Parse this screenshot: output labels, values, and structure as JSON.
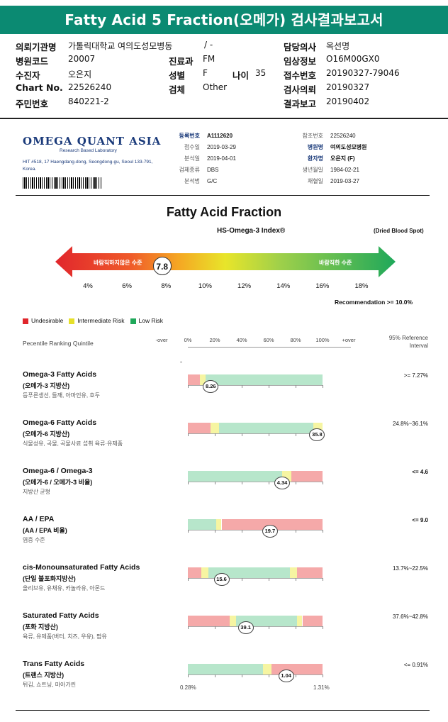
{
  "header": {
    "title": "Fatty Acid 5 Fraction(오메가) 검사결과보고서"
  },
  "patient_info": [
    {
      "label": "의뢰기관명",
      "value": "가톨릭대학교 여의도성모병동"
    },
    {
      "label": "병원코드",
      "value": "20007"
    },
    {
      "label": "수진자",
      "value": "오은지"
    },
    {
      "label": "Chart No.",
      "value": "22526240"
    },
    {
      "label": "주민번호",
      "value": "840221-2"
    },
    {
      "label": "",
      "value": "/ -"
    },
    {
      "label": "진료과",
      "value": "FM"
    },
    {
      "label": "성별",
      "value": "F"
    },
    {
      "label": "검체",
      "value": "Other"
    },
    {
      "label": "나이",
      "value": "35"
    },
    {
      "label": "담당의사",
      "value": "옥선명"
    },
    {
      "label": "임상정보",
      "value": "O16M00GX0"
    },
    {
      "label": "접수번호",
      "value": "20190327-79046"
    },
    {
      "label": "검사의뢰",
      "value": "20190327"
    },
    {
      "label": "결과보고",
      "value": "20190402"
    }
  ],
  "lab": {
    "name": "OMEGA QUANT ASIA",
    "subtitle": "Research Based Laboratory",
    "address": "HIT #518, 17 Haengdang-dong, Seongdong-gu, Seoul 133-791, Korea."
  },
  "report_meta_left": [
    {
      "label": "등록번호",
      "value": "A1112620",
      "bold": true
    },
    {
      "label": "접수일",
      "value": "2019-03-29"
    },
    {
      "label": "분석일",
      "value": "2019-04-01"
    },
    {
      "label": "검체종류",
      "value": "DBS"
    },
    {
      "label": "분석법",
      "value": "G/C"
    }
  ],
  "report_meta_right": [
    {
      "label": "참조번호",
      "value": "22526240"
    },
    {
      "label": "병원명",
      "value": "여의도성모병원",
      "bold": true
    },
    {
      "label": "환자명",
      "value": "오은지 (F)",
      "bold": true
    },
    {
      "label": "생년월일",
      "value": "1984-02-21"
    },
    {
      "label": "채혈일",
      "value": "2019-03-27"
    }
  ],
  "index_chart": {
    "title": "Fatty Acid Fraction",
    "index_title": "HS-Omega-3 Index®",
    "sample_note": "(Dried Blood Spot)",
    "left_label": "바람직하지않은 수준",
    "right_label": "바람직한 수준",
    "score": "7.8",
    "score_value": 7.8,
    "scale": [
      "4%",
      "6%",
      "8%",
      "10%",
      "12%",
      "14%",
      "16%",
      "18%"
    ],
    "scale_values": [
      4,
      6,
      8,
      10,
      12,
      14,
      16,
      18
    ],
    "recommendation": "Recommendation  >= 10.0%"
  },
  "legend": [
    {
      "label": "Undesirable",
      "color": "#e0262c"
    },
    {
      "label": "Intermediate Risk",
      "color": "#e6e02a"
    },
    {
      "label": "Low Risk",
      "color": "#1fa85a"
    }
  ],
  "percentile_header": {
    "label": "Pecentile Ranking Quintile",
    "ticks": [
      "-over",
      "0%",
      "20%",
      "40%",
      "60%",
      "80%",
      "100%",
      "+over"
    ],
    "reference_label": "95% Reference Interval",
    "dash": "-"
  },
  "zone_colors": {
    "red": "#f5a9a9",
    "yellow": "#f6f5a2",
    "green": "#b7e6cb"
  },
  "rows": [
    {
      "name": "Omega-3 Fatty Acids",
      "korean": "(오메가-3 지방산)",
      "sources": "등푸른생선, 들깨, 아마인유, 호두",
      "reference": ">= 7.27%",
      "ref_bold": false,
      "value": "8.26",
      "marker_pct": 0.17,
      "zones": [
        {
          "c": "red",
          "w": 0.09
        },
        {
          "c": "yellow",
          "w": 0.04
        },
        {
          "c": "green",
          "w": 0.87
        }
      ]
    },
    {
      "name": "Omega-6 Fatty Acids",
      "korean": "(오메가-6 지방산)",
      "sources": "식물성유, 곡물, 곡물사료 섭취 육류·유제품",
      "reference": "24.8%~36.1%",
      "ref_bold": false,
      "value": "35.8",
      "marker_pct": 0.96,
      "zones": [
        {
          "c": "red",
          "w": 0.17
        },
        {
          "c": "yellow",
          "w": 0.06
        },
        {
          "c": "green",
          "w": 0.7
        },
        {
          "c": "yellow",
          "w": 0.07
        }
      ]
    },
    {
      "name": "Omega-6 / Omega-3",
      "korean": "(오메가-6 / 오메가-3 비율)",
      "sources": "지방산 균형",
      "reference": "<= 4.6",
      "ref_bold": true,
      "value": "4.34",
      "marker_pct": 0.7,
      "zones": [
        {
          "c": "green",
          "w": 0.7
        },
        {
          "c": "yellow",
          "w": 0.07
        },
        {
          "c": "red",
          "w": 0.23
        }
      ]
    },
    {
      "name": "AA / EPA",
      "korean": "(AA / EPA 비율)",
      "sources": "염증 수준",
      "reference": "<= 9.0",
      "ref_bold": true,
      "value": "19.7",
      "marker_pct": 0.61,
      "zones": [
        {
          "c": "green",
          "w": 0.21
        },
        {
          "c": "yellow",
          "w": 0.04
        },
        {
          "c": "red",
          "w": 0.75
        }
      ]
    },
    {
      "name": "cis-Monounsaturated Fatty Acids",
      "korean": "(단일 불포화지방산)",
      "sources": "올리브유, 유채유, 카놀라유, 아몬드",
      "reference": "13.7%~22.5%",
      "ref_bold": false,
      "value": "15.6",
      "marker_pct": 0.25,
      "zones": [
        {
          "c": "red",
          "w": 0.1
        },
        {
          "c": "yellow",
          "w": 0.05
        },
        {
          "c": "green",
          "w": 0.61
        },
        {
          "c": "yellow",
          "w": 0.05
        },
        {
          "c": "red",
          "w": 0.19
        }
      ]
    },
    {
      "name": "Saturated Fatty Acids",
      "korean": "(포화 지방산)",
      "sources": "육류, 유제품(버터, 치즈, 우유), 팜유",
      "reference": "37.6%~42.8%",
      "ref_bold": false,
      "value": "39.1",
      "marker_pct": 0.43,
      "zones": [
        {
          "c": "red",
          "w": 0.31
        },
        {
          "c": "yellow",
          "w": 0.05
        },
        {
          "c": "green",
          "w": 0.45
        },
        {
          "c": "yellow",
          "w": 0.04
        },
        {
          "c": "red",
          "w": 0.15
        }
      ]
    },
    {
      "name": "Trans Fatty Acids",
      "korean": "(트랜스 지방산)",
      "sources": "튀김, 쇼트닝, 마아가린",
      "reference": "<= 0.91%",
      "ref_bold": false,
      "value": "1.04",
      "marker_pct": 0.73,
      "zones": [
        {
          "c": "green",
          "w": 0.56
        },
        {
          "c": "yellow",
          "w": 0.06
        },
        {
          "c": "red",
          "w": 0.38
        }
      ]
    }
  ],
  "trans_scale": {
    "min": "0.28%",
    "max": "1.31%"
  }
}
